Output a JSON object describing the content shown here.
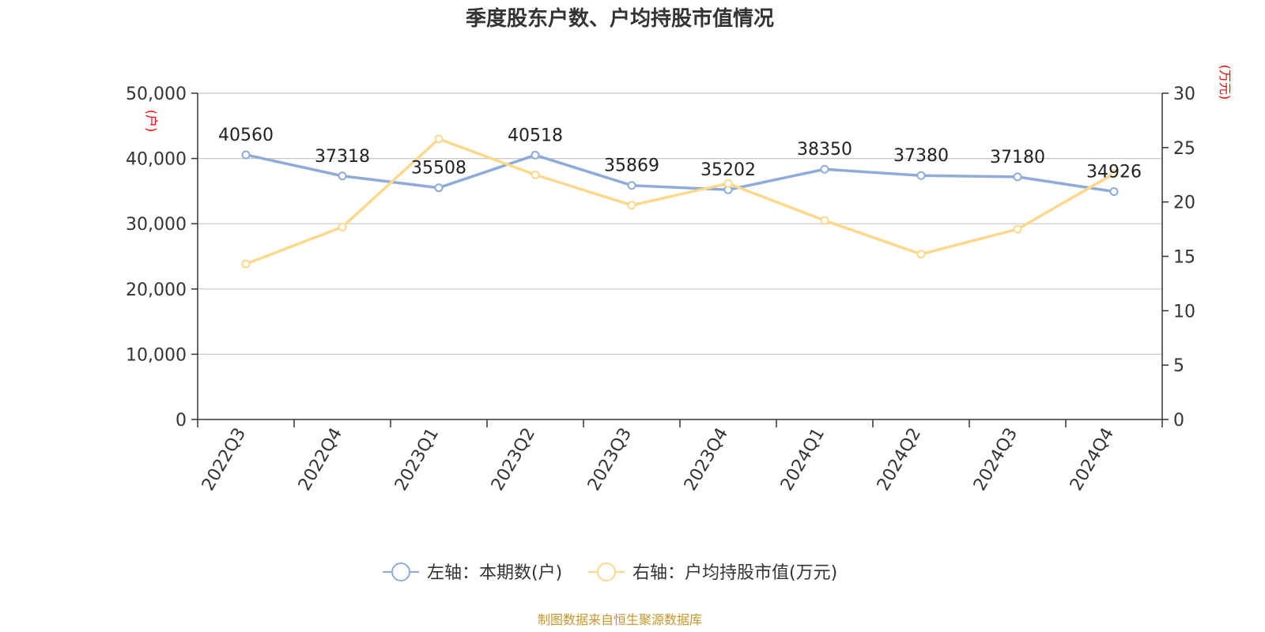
{
  "colors": {
    "series1": "#8eabd9",
    "series2": "#fcd88d",
    "unit": "#ff0000",
    "source": "#c8962e",
    "grid": "#c8c8c8"
  },
  "source_text": "制图数据来自恒生聚源数据库",
  "chart_data": {
    "type": "line",
    "title": "季度股东户数、户均持股市值情况",
    "categories": [
      "2022Q3",
      "2022Q4",
      "2023Q1",
      "2023Q2",
      "2023Q3",
      "2023Q4",
      "2024Q1",
      "2024Q2",
      "2024Q3",
      "2024Q4"
    ],
    "y_left": {
      "unit": "(户)",
      "min": 0,
      "max": 50000,
      "ticks": [
        "0",
        "10,000",
        "20,000",
        "30,000",
        "40,000",
        "50,000"
      ]
    },
    "y_right": {
      "unit": "(万元)",
      "min": 0,
      "max": 30,
      "ticks": [
        "0",
        "5",
        "10",
        "15",
        "20",
        "25",
        "30"
      ]
    },
    "series": [
      {
        "name": "左轴：本期数(户)",
        "axis": "left",
        "values": [
          40560,
          37318,
          35508,
          40518,
          35869,
          35202,
          38350,
          37380,
          37180,
          34926
        ],
        "labels": [
          "40560",
          "37318",
          "35508",
          "40518",
          "35869",
          "35202",
          "38350",
          "37380",
          "37180",
          "34926"
        ]
      },
      {
        "name": "右轴：户均持股市值(万元)",
        "axis": "right",
        "values": [
          14.3,
          17.7,
          25.8,
          22.5,
          19.7,
          21.7,
          18.3,
          15.2,
          17.5,
          22.6
        ]
      }
    ],
    "grid": true,
    "legend": "bottom-center"
  }
}
